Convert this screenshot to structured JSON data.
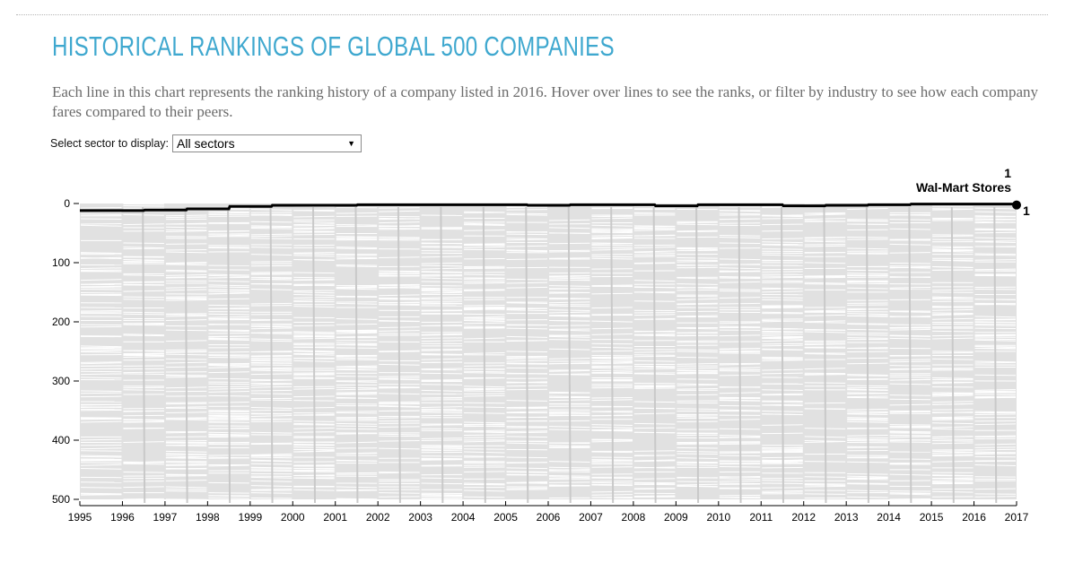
{
  "header": {
    "title": "HISTORICAL RANKINGS OF GLOBAL 500 COMPANIES",
    "subtitle": "Each line in this chart represents the ranking history of a company listed in 2016. Hover over lines to see the ranks, or filter by industry to see how each company fares compared to their peers."
  },
  "filter": {
    "label": "Select sector to display:",
    "selected": "All sectors"
  },
  "colors": {
    "title": "#3fa8cf",
    "plot_background": "#e1e1e1",
    "gap_line": "#ffffff",
    "year_divider": "#c9c9c9",
    "highlight": "#000000"
  },
  "chart_data": {
    "type": "line",
    "title": "HISTORICAL RANKINGS OF GLOBAL 500 COMPANIES",
    "xlabel": "",
    "ylabel": "",
    "x": [
      "1995",
      "1996",
      "1997",
      "1998",
      "1999",
      "2000",
      "2001",
      "2002",
      "2003",
      "2004",
      "2005",
      "2006",
      "2007",
      "2008",
      "2009",
      "2010",
      "2011",
      "2012",
      "2013",
      "2014",
      "2015",
      "2016",
      "2017"
    ],
    "xlim": [
      1995,
      2017
    ],
    "ylim": [
      0,
      500
    ],
    "y_inverted": true,
    "y_ticks": [
      0,
      100,
      200,
      300,
      400,
      500
    ],
    "background_series": "ranking histories of all companies listed in 2016 (light gray lines)",
    "highlight": {
      "name": "Wal-Mart Stores",
      "final_rank_label": "1",
      "end_label": "1",
      "values": [
        12,
        12,
        11,
        9,
        5,
        3,
        3,
        2,
        2,
        2,
        2,
        3,
        2,
        2,
        4,
        2,
        2,
        4,
        3,
        2,
        1,
        1,
        1
      ]
    }
  }
}
